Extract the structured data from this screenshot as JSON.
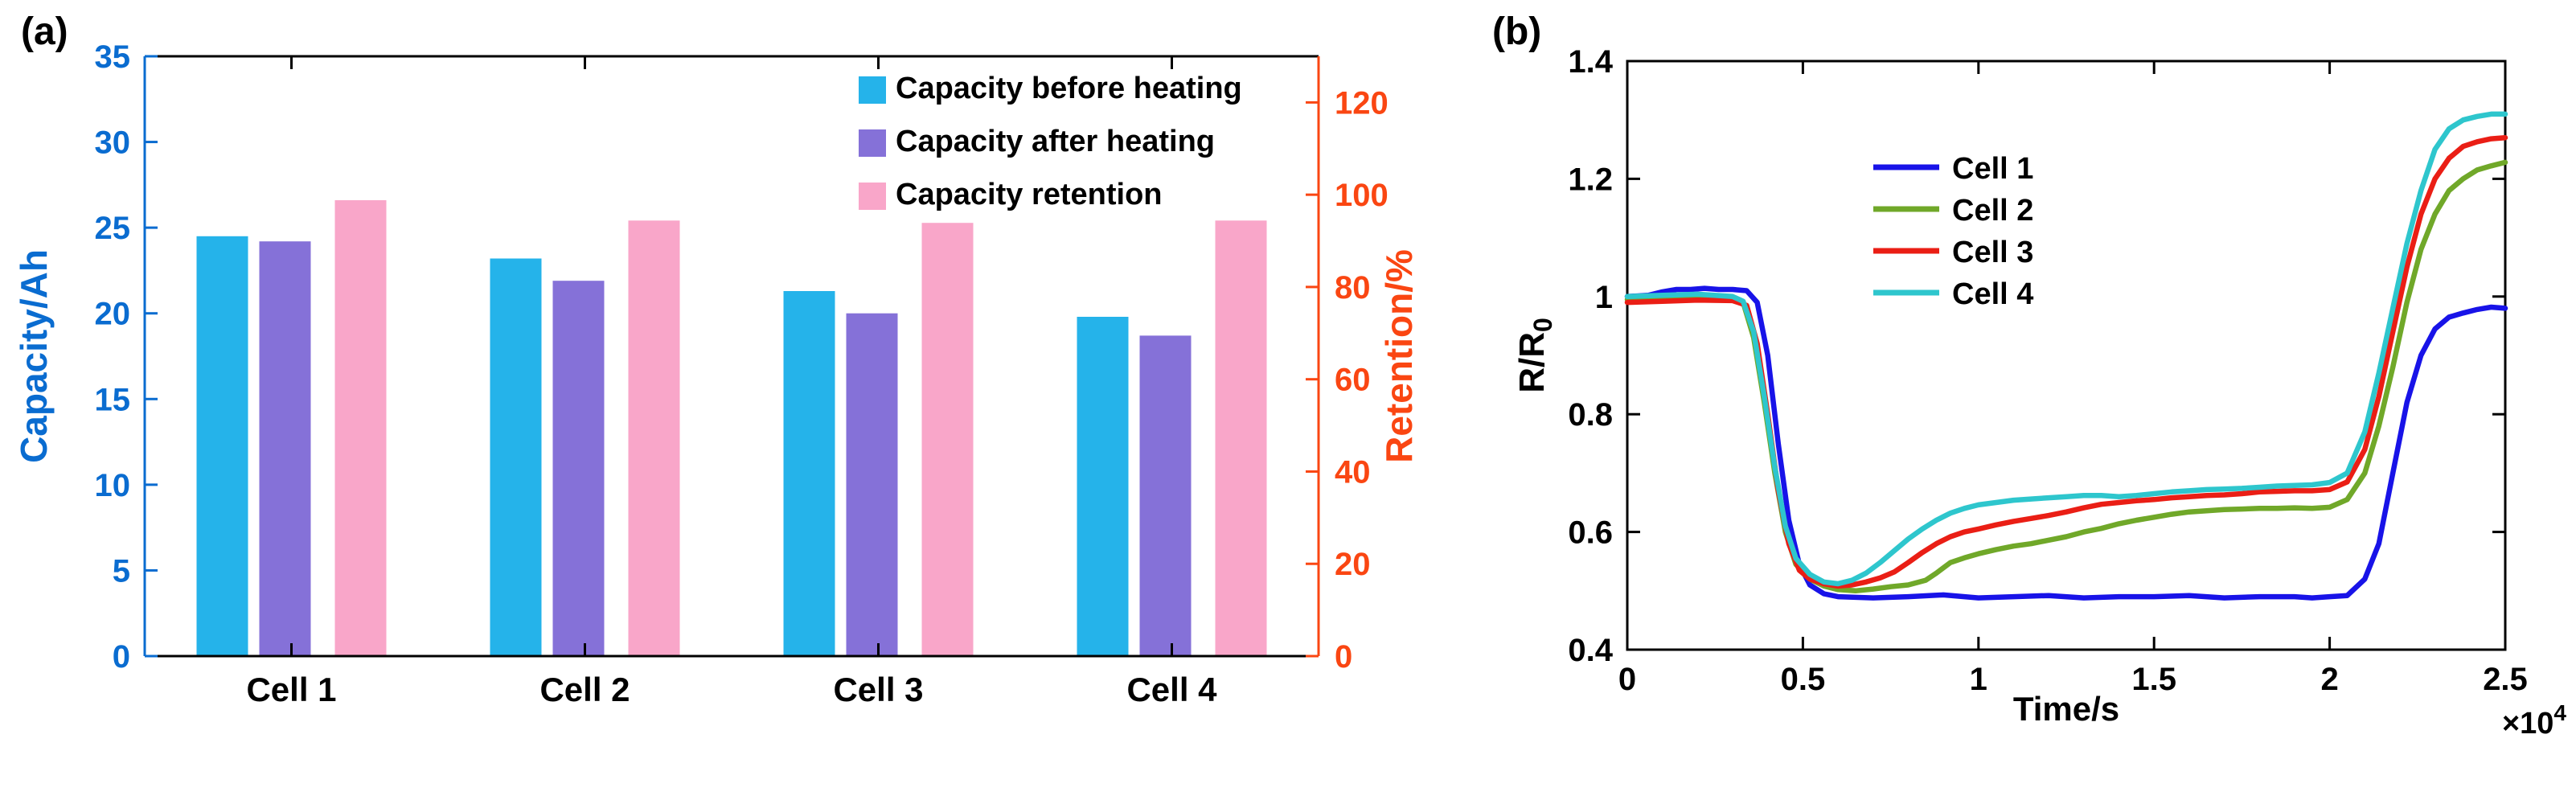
{
  "panels": {
    "a": {
      "label": "(a)"
    },
    "b": {
      "label": "(b)"
    }
  },
  "chart_data": [
    {
      "id": "chart-a",
      "type": "bar",
      "categories": [
        "Cell 1",
        "Cell 2",
        "Cell 3",
        "Cell 4"
      ],
      "series": [
        {
          "name": "Capacity before heating",
          "axis": "left",
          "color": "#25b3ea",
          "values": [
            24.5,
            23.2,
            21.3,
            19.8
          ]
        },
        {
          "name": "Capacity after heating",
          "axis": "left",
          "color": "#8571d8",
          "values": [
            24.2,
            21.9,
            20.0,
            18.7
          ]
        },
        {
          "name": "Capacity retention",
          "axis": "right",
          "color": "#f9a6c9",
          "values": [
            98.8,
            94.4,
            93.9,
            94.4
          ]
        }
      ],
      "left_axis": {
        "label": "Capacity/Ah",
        "color": "#0a6cd0",
        "min": 0,
        "max": 35,
        "tick_values": [
          0,
          5,
          10,
          15,
          20,
          25,
          30,
          35
        ],
        "tick_labels": [
          "0",
          "5",
          "10",
          "15",
          "20",
          "25",
          "30",
          "35"
        ]
      },
      "right_axis": {
        "label": "Retention/%",
        "color": "#fa4612",
        "min": 0,
        "max": 130,
        "tick_values": [
          0,
          20,
          40,
          60,
          80,
          100,
          120
        ],
        "tick_labels": [
          "0",
          "20",
          "40",
          "60",
          "80",
          "100",
          "120"
        ]
      },
      "legend_position": "top-right-inside",
      "grid": false
    },
    {
      "id": "chart-b",
      "type": "line",
      "xlabel": "Time/s",
      "ylabel": {
        "main": "R/R",
        "sub": "0"
      },
      "x_multiplier": {
        "base": "×10",
        "exp": "4"
      },
      "xlim": [
        0,
        2.5
      ],
      "ylim": [
        0.4,
        1.4
      ],
      "xtick_values": [
        0,
        0.5,
        1,
        1.5,
        2,
        2.5
      ],
      "xtick_labels": [
        "0",
        "0.5",
        "1",
        "1.5",
        "2",
        "2.5"
      ],
      "ytick_values": [
        0.4,
        0.6,
        0.8,
        1,
        1.2,
        1.4
      ],
      "ytick_labels": [
        "0.4",
        "0.6",
        "0.8",
        "1",
        "1.2",
        "1.4"
      ],
      "legend_position": "upper-left-inside",
      "grid": false,
      "series": [
        {
          "name": "Cell 1",
          "color": "#1813e8",
          "points": [
            [
              0,
              1.0
            ],
            [
              0.06,
              1.002
            ],
            [
              0.1,
              1.008
            ],
            [
              0.14,
              1.012
            ],
            [
              0.18,
              1.012
            ],
            [
              0.22,
              1.014
            ],
            [
              0.26,
              1.012
            ],
            [
              0.3,
              1.012
            ],
            [
              0.34,
              1.01
            ],
            [
              0.37,
              0.99
            ],
            [
              0.4,
              0.9
            ],
            [
              0.43,
              0.75
            ],
            [
              0.46,
              0.62
            ],
            [
              0.49,
              0.545
            ],
            [
              0.52,
              0.51
            ],
            [
              0.56,
              0.495
            ],
            [
              0.6,
              0.49
            ],
            [
              0.7,
              0.488
            ],
            [
              0.8,
              0.49
            ],
            [
              0.9,
              0.493
            ],
            [
              1.0,
              0.488
            ],
            [
              1.1,
              0.49
            ],
            [
              1.2,
              0.492
            ],
            [
              1.3,
              0.488
            ],
            [
              1.4,
              0.49
            ],
            [
              1.5,
              0.49
            ],
            [
              1.6,
              0.492
            ],
            [
              1.7,
              0.488
            ],
            [
              1.8,
              0.49
            ],
            [
              1.9,
              0.49
            ],
            [
              1.95,
              0.488
            ],
            [
              2.0,
              0.49
            ],
            [
              2.05,
              0.492
            ],
            [
              2.1,
              0.52
            ],
            [
              2.14,
              0.58
            ],
            [
              2.18,
              0.7
            ],
            [
              2.22,
              0.82
            ],
            [
              2.26,
              0.9
            ],
            [
              2.3,
              0.945
            ],
            [
              2.34,
              0.965
            ],
            [
              2.38,
              0.972
            ],
            [
              2.42,
              0.978
            ],
            [
              2.46,
              0.982
            ],
            [
              2.5,
              0.98
            ]
          ]
        },
        {
          "name": "Cell 2",
          "color": "#70a829",
          "points": [
            [
              0,
              0.995
            ],
            [
              0.1,
              0.998
            ],
            [
              0.2,
              1.0
            ],
            [
              0.3,
              0.998
            ],
            [
              0.33,
              0.99
            ],
            [
              0.36,
              0.93
            ],
            [
              0.39,
              0.82
            ],
            [
              0.42,
              0.7
            ],
            [
              0.45,
              0.6
            ],
            [
              0.48,
              0.545
            ],
            [
              0.52,
              0.52
            ],
            [
              0.56,
              0.508
            ],
            [
              0.6,
              0.502
            ],
            [
              0.65,
              0.5
            ],
            [
              0.7,
              0.503
            ],
            [
              0.75,
              0.507
            ],
            [
              0.8,
              0.51
            ],
            [
              0.85,
              0.518
            ],
            [
              0.88,
              0.53
            ],
            [
              0.92,
              0.548
            ],
            [
              0.96,
              0.556
            ],
            [
              1.0,
              0.563
            ],
            [
              1.05,
              0.57
            ],
            [
              1.1,
              0.576
            ],
            [
              1.15,
              0.58
            ],
            [
              1.2,
              0.586
            ],
            [
              1.25,
              0.592
            ],
            [
              1.3,
              0.6
            ],
            [
              1.35,
              0.606
            ],
            [
              1.4,
              0.614
            ],
            [
              1.45,
              0.62
            ],
            [
              1.5,
              0.625
            ],
            [
              1.55,
              0.63
            ],
            [
              1.6,
              0.634
            ],
            [
              1.65,
              0.636
            ],
            [
              1.7,
              0.638
            ],
            [
              1.75,
              0.639
            ],
            [
              1.8,
              0.64
            ],
            [
              1.85,
              0.64
            ],
            [
              1.9,
              0.641
            ],
            [
              1.95,
              0.64
            ],
            [
              2.0,
              0.642
            ],
            [
              2.05,
              0.655
            ],
            [
              2.1,
              0.7
            ],
            [
              2.14,
              0.78
            ],
            [
              2.18,
              0.88
            ],
            [
              2.22,
              0.99
            ],
            [
              2.26,
              1.08
            ],
            [
              2.3,
              1.14
            ],
            [
              2.34,
              1.18
            ],
            [
              2.38,
              1.2
            ],
            [
              2.42,
              1.215
            ],
            [
              2.46,
              1.222
            ],
            [
              2.5,
              1.228
            ]
          ]
        },
        {
          "name": "Cell 3",
          "color": "#ea1e15",
          "points": [
            [
              0,
              0.99
            ],
            [
              0.1,
              0.992
            ],
            [
              0.2,
              0.994
            ],
            [
              0.3,
              0.993
            ],
            [
              0.34,
              0.985
            ],
            [
              0.37,
              0.92
            ],
            [
              0.4,
              0.8
            ],
            [
              0.43,
              0.67
            ],
            [
              0.46,
              0.58
            ],
            [
              0.49,
              0.535
            ],
            [
              0.52,
              0.52
            ],
            [
              0.56,
              0.512
            ],
            [
              0.6,
              0.508
            ],
            [
              0.64,
              0.51
            ],
            [
              0.68,
              0.515
            ],
            [
              0.72,
              0.522
            ],
            [
              0.76,
              0.532
            ],
            [
              0.8,
              0.548
            ],
            [
              0.84,
              0.565
            ],
            [
              0.88,
              0.58
            ],
            [
              0.92,
              0.592
            ],
            [
              0.96,
              0.6
            ],
            [
              1.0,
              0.605
            ],
            [
              1.05,
              0.612
            ],
            [
              1.1,
              0.618
            ],
            [
              1.15,
              0.623
            ],
            [
              1.2,
              0.628
            ],
            [
              1.25,
              0.634
            ],
            [
              1.3,
              0.641
            ],
            [
              1.35,
              0.647
            ],
            [
              1.4,
              0.65
            ],
            [
              1.45,
              0.653
            ],
            [
              1.5,
              0.655
            ],
            [
              1.55,
              0.658
            ],
            [
              1.6,
              0.66
            ],
            [
              1.65,
              0.662
            ],
            [
              1.7,
              0.663
            ],
            [
              1.75,
              0.665
            ],
            [
              1.8,
              0.668
            ],
            [
              1.85,
              0.669
            ],
            [
              1.9,
              0.67
            ],
            [
              1.95,
              0.67
            ],
            [
              2.0,
              0.672
            ],
            [
              2.05,
              0.685
            ],
            [
              2.1,
              0.74
            ],
            [
              2.14,
              0.83
            ],
            [
              2.18,
              0.94
            ],
            [
              2.22,
              1.05
            ],
            [
              2.26,
              1.14
            ],
            [
              2.3,
              1.2
            ],
            [
              2.34,
              1.235
            ],
            [
              2.38,
              1.255
            ],
            [
              2.42,
              1.263
            ],
            [
              2.46,
              1.268
            ],
            [
              2.5,
              1.27
            ]
          ]
        },
        {
          "name": "Cell 4",
          "color": "#2ec6cd",
          "points": [
            [
              0,
              1.0
            ],
            [
              0.1,
              1.002
            ],
            [
              0.2,
              1.004
            ],
            [
              0.3,
              1.0
            ],
            [
              0.33,
              0.992
            ],
            [
              0.36,
              0.94
            ],
            [
              0.39,
              0.83
            ],
            [
              0.42,
              0.71
            ],
            [
              0.45,
              0.61
            ],
            [
              0.48,
              0.555
            ],
            [
              0.52,
              0.528
            ],
            [
              0.56,
              0.515
            ],
            [
              0.6,
              0.512
            ],
            [
              0.64,
              0.518
            ],
            [
              0.68,
              0.53
            ],
            [
              0.72,
              0.548
            ],
            [
              0.76,
              0.568
            ],
            [
              0.8,
              0.588
            ],
            [
              0.84,
              0.605
            ],
            [
              0.88,
              0.62
            ],
            [
              0.92,
              0.632
            ],
            [
              0.96,
              0.64
            ],
            [
              1.0,
              0.646
            ],
            [
              1.05,
              0.65
            ],
            [
              1.1,
              0.654
            ],
            [
              1.15,
              0.656
            ],
            [
              1.2,
              0.658
            ],
            [
              1.25,
              0.66
            ],
            [
              1.3,
              0.662
            ],
            [
              1.35,
              0.662
            ],
            [
              1.4,
              0.66
            ],
            [
              1.45,
              0.662
            ],
            [
              1.5,
              0.665
            ],
            [
              1.55,
              0.668
            ],
            [
              1.6,
              0.67
            ],
            [
              1.65,
              0.672
            ],
            [
              1.7,
              0.673
            ],
            [
              1.75,
              0.674
            ],
            [
              1.8,
              0.676
            ],
            [
              1.85,
              0.678
            ],
            [
              1.9,
              0.679
            ],
            [
              1.95,
              0.68
            ],
            [
              2.0,
              0.684
            ],
            [
              2.05,
              0.7
            ],
            [
              2.1,
              0.77
            ],
            [
              2.14,
              0.87
            ],
            [
              2.18,
              0.98
            ],
            [
              2.22,
              1.09
            ],
            [
              2.26,
              1.18
            ],
            [
              2.3,
              1.25
            ],
            [
              2.34,
              1.285
            ],
            [
              2.38,
              1.3
            ],
            [
              2.42,
              1.306
            ],
            [
              2.46,
              1.31
            ],
            [
              2.5,
              1.31
            ]
          ]
        }
      ]
    }
  ]
}
